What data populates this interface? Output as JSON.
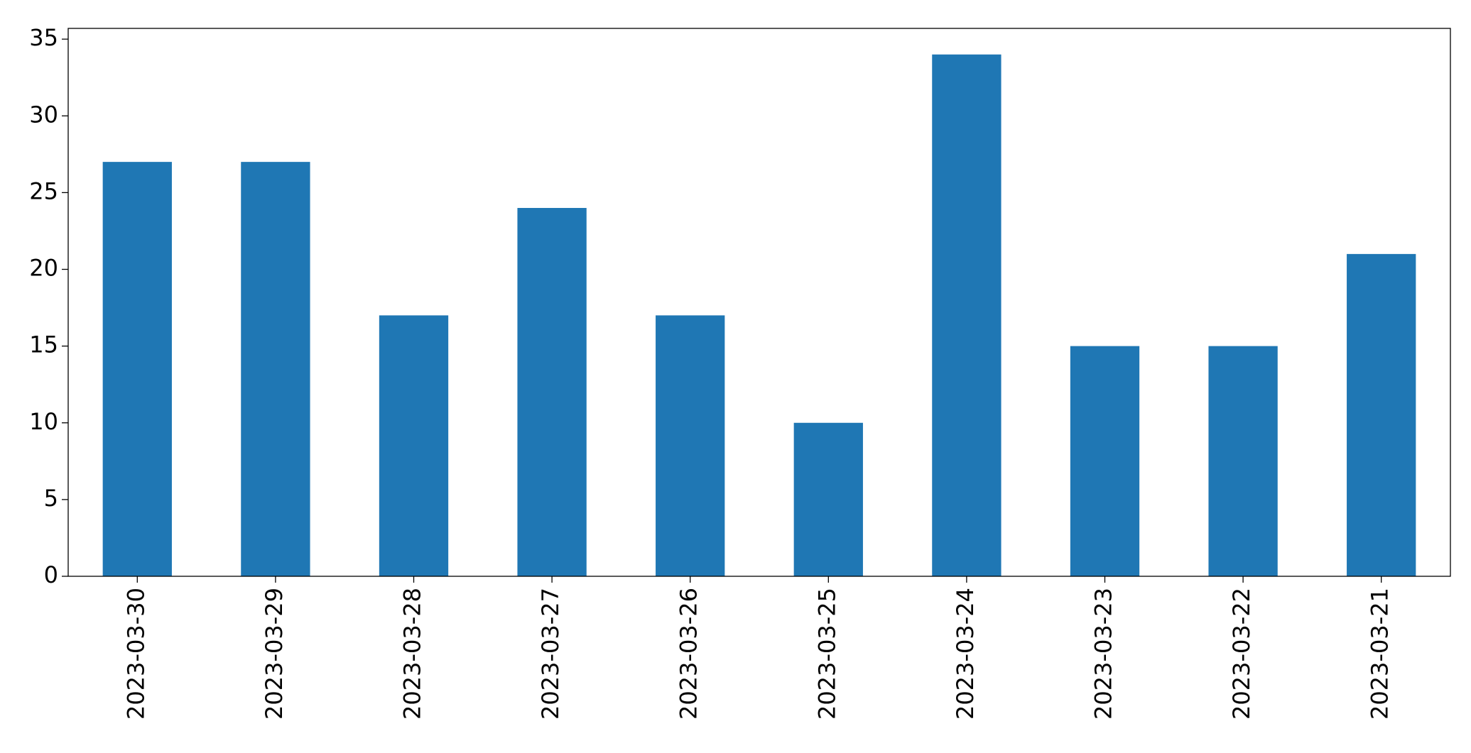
{
  "chart_data": {
    "type": "bar",
    "categories": [
      "2023-03-30",
      "2023-03-29",
      "2023-03-28",
      "2023-03-27",
      "2023-03-26",
      "2023-03-25",
      "2023-03-24",
      "2023-03-23",
      "2023-03-22",
      "2023-03-21"
    ],
    "values": [
      27,
      27,
      17,
      24,
      17,
      10,
      34,
      15,
      15,
      21
    ],
    "color": "#1f77b4",
    "ylim": [
      0,
      35.7
    ],
    "yticks": [
      0,
      5,
      10,
      15,
      20,
      25,
      30,
      35
    ],
    "grid": false
  }
}
